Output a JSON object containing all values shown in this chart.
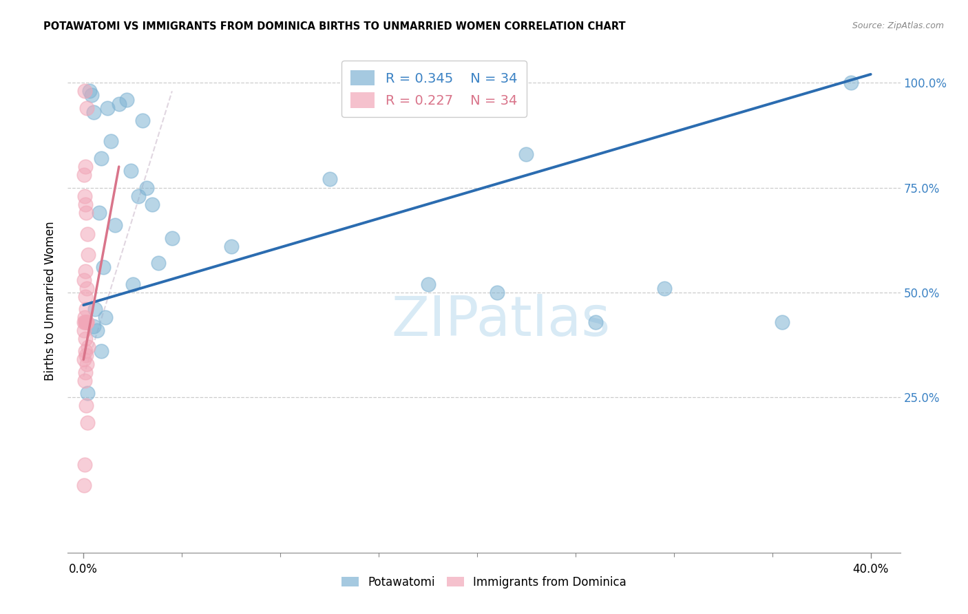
{
  "title": "POTAWATOMI VS IMMIGRANTS FROM DOMINICA BIRTHS TO UNMARRIED WOMEN CORRELATION CHART",
  "source": "Source: ZipAtlas.com",
  "ylabel": "Births to Unmarried Women",
  "x_tick_labels_bottom": [
    "0.0%",
    "40.0%"
  ],
  "x_tick_positions_bottom": [
    0.0,
    40.0
  ],
  "x_minor_ticks": [
    5.0,
    10.0,
    15.0,
    20.0,
    25.0,
    30.0,
    35.0
  ],
  "y_tick_labels": [
    "25.0%",
    "50.0%",
    "75.0%",
    "100.0%"
  ],
  "y_tick_values": [
    25.0,
    50.0,
    75.0,
    100.0
  ],
  "xlim": [
    -0.8,
    41.5
  ],
  "ylim": [
    -12.0,
    108.0
  ],
  "blue_R": 0.345,
  "blue_N": 34,
  "pink_R": 0.227,
  "pink_N": 34,
  "blue_color": "#7FB3D3",
  "pink_color": "#F1A7B8",
  "blue_line_color": "#2B6CB0",
  "pink_line_color": "#D9748A",
  "watermark_color": "#D8EAF5",
  "legend_entries": [
    "Potawatomi",
    "Immigrants from Dominica"
  ],
  "blue_scatter_x": [
    0.5,
    1.0,
    0.8,
    2.8,
    1.6,
    2.4,
    3.5,
    4.5,
    0.6,
    0.9,
    1.4,
    3.0,
    0.7,
    0.5,
    1.2,
    1.8,
    2.2,
    0.4,
    0.3,
    0.9,
    1.1,
    2.5,
    3.8,
    3.2,
    7.5,
    12.5,
    17.5,
    21.0,
    22.5,
    26.0,
    29.5,
    35.5,
    39.0,
    0.2
  ],
  "blue_scatter_y": [
    42.0,
    56.0,
    69.0,
    73.0,
    66.0,
    79.0,
    71.0,
    63.0,
    46.0,
    82.0,
    86.0,
    91.0,
    41.0,
    93.0,
    94.0,
    95.0,
    96.0,
    97.0,
    98.0,
    36.0,
    44.0,
    52.0,
    57.0,
    75.0,
    61.0,
    77.0,
    52.0,
    50.0,
    83.0,
    43.0,
    51.0,
    43.0,
    100.0,
    26.0
  ],
  "pink_scatter_x": [
    0.05,
    0.15,
    0.08,
    0.04,
    0.06,
    0.1,
    0.14,
    0.2,
    0.25,
    0.08,
    0.04,
    0.16,
    0.08,
    0.12,
    0.06,
    0.18,
    0.04,
    0.08,
    0.22,
    0.1,
    0.14,
    0.04,
    0.16,
    0.08,
    0.06,
    0.12,
    0.2,
    0.08,
    0.04,
    0.16,
    0.12,
    0.08,
    0.06,
    0.04
  ],
  "pink_scatter_y": [
    98.0,
    94.0,
    80.0,
    78.0,
    73.0,
    71.0,
    69.0,
    64.0,
    59.0,
    55.0,
    53.0,
    51.0,
    49.0,
    46.0,
    44.0,
    43.0,
    41.0,
    39.0,
    37.0,
    36.0,
    35.0,
    34.0,
    33.0,
    31.0,
    29.0,
    23.0,
    19.0,
    43.0,
    43.0,
    43.0,
    43.0,
    43.0,
    9.0,
    4.0
  ],
  "blue_line_x": [
    0.0,
    40.0
  ],
  "blue_line_y": [
    47.0,
    102.0
  ],
  "pink_line_x": [
    0.0,
    1.8
  ],
  "pink_line_y": [
    34.0,
    80.0
  ]
}
